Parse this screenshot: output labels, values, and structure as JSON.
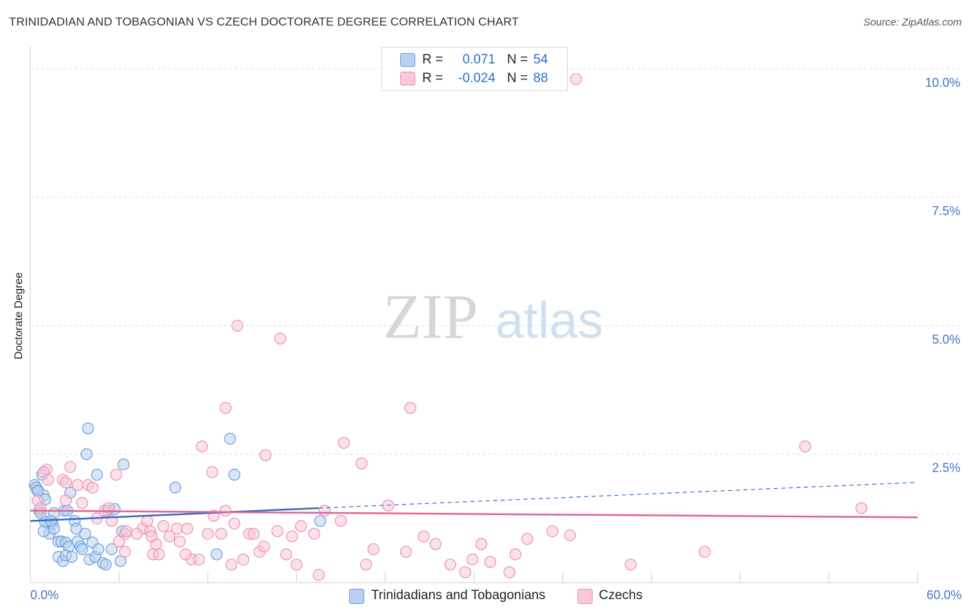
{
  "chart_data": {
    "type": "scatter",
    "title": "TRINIDADIAN AND TOBAGONIAN VS CZECH DOCTORATE DEGREE CORRELATION CHART",
    "source": "Source: ZipAtlas.com",
    "ylabel": "Doctorate Degree",
    "xlabel": "",
    "xlim": [
      0,
      60
    ],
    "ylim": [
      0,
      10.4
    ],
    "x_tick_labels": [
      "0.0%",
      "60.0%"
    ],
    "y_ticks": [
      2.5,
      5.0,
      7.5,
      10.0
    ],
    "y_tick_labels": [
      "2.5%",
      "5.0%",
      "7.5%",
      "10.0%"
    ],
    "watermark": {
      "part1": "ZIP",
      "part2": "atlas"
    },
    "legend": {
      "r_label": "R =",
      "n_label": "N =",
      "rows": [
        {
          "r": "0.071",
          "n": "54"
        },
        {
          "r": "-0.024",
          "n": "88"
        }
      ]
    },
    "series": [
      {
        "name": "Trinidadians and Tobagonians",
        "color": "#6a9fdc",
        "fill": "#b8d1f0",
        "line_color": "#2f6ec4",
        "trend_solid": [
          [
            0,
            1.2
          ],
          [
            19.5,
            1.45
          ]
        ],
        "trend_dashed": [
          [
            19.5,
            1.45
          ],
          [
            60,
            1.95
          ]
        ],
        "points": [
          [
            0.3,
            1.9
          ],
          [
            0.5,
            1.8
          ],
          [
            0.4,
            1.85
          ],
          [
            0.9,
            1.7
          ],
          [
            1.0,
            1.62
          ],
          [
            0.8,
            2.1
          ],
          [
            0.6,
            1.4
          ],
          [
            0.7,
            1.35
          ],
          [
            1.2,
            1.15
          ],
          [
            1.5,
            1.15
          ],
          [
            1.3,
            0.95
          ],
          [
            1.6,
            1.05
          ],
          [
            1.6,
            1.35
          ],
          [
            1.9,
            0.8
          ],
          [
            2.1,
            0.8
          ],
          [
            2.4,
            0.78
          ],
          [
            2.6,
            0.7
          ],
          [
            2.3,
            1.4
          ],
          [
            2.5,
            1.4
          ],
          [
            2.7,
            1.75
          ],
          [
            3.0,
            1.2
          ],
          [
            3.2,
            0.8
          ],
          [
            3.4,
            0.7
          ],
          [
            3.5,
            0.65
          ],
          [
            3.7,
            0.95
          ],
          [
            3.8,
            2.5
          ],
          [
            3.9,
            3.0
          ],
          [
            4.0,
            0.45
          ],
          [
            4.2,
            0.78
          ],
          [
            4.4,
            0.5
          ],
          [
            4.5,
            2.1
          ],
          [
            4.6,
            0.65
          ],
          [
            4.9,
            0.38
          ],
          [
            5.1,
            0.35
          ],
          [
            5.2,
            1.4
          ],
          [
            5.5,
            0.65
          ],
          [
            5.7,
            1.43
          ],
          [
            6.1,
            0.42
          ],
          [
            6.2,
            1.0
          ],
          [
            6.3,
            2.3
          ],
          [
            9.8,
            1.85
          ],
          [
            12.6,
            0.55
          ],
          [
            13.5,
            2.8
          ],
          [
            13.8,
            2.1
          ],
          [
            19.6,
            1.2
          ],
          [
            1.9,
            0.5
          ],
          [
            2.2,
            0.42
          ],
          [
            2.4,
            0.53
          ],
          [
            0.5,
            1.78
          ],
          [
            1.0,
            1.18
          ],
          [
            1.4,
            1.2
          ],
          [
            3.1,
            1.05
          ],
          [
            0.9,
            1.0
          ],
          [
            2.8,
            0.5
          ]
        ]
      },
      {
        "name": "Czechs",
        "color": "#ec8faf",
        "fill": "#f8c8d8",
        "line_color": "#e0648e",
        "trend_solid": [
          [
            0,
            1.4
          ],
          [
            60,
            1.27
          ]
        ],
        "points": [
          [
            36.9,
            9.8
          ],
          [
            14.0,
            5.0
          ],
          [
            16.9,
            4.75
          ],
          [
            13.2,
            3.4
          ],
          [
            25.7,
            3.4
          ],
          [
            11.6,
            2.65
          ],
          [
            21.2,
            2.72
          ],
          [
            15.9,
            2.48
          ],
          [
            22.4,
            2.32
          ],
          [
            12.3,
            2.15
          ],
          [
            1.1,
            2.2
          ],
          [
            0.9,
            2.15
          ],
          [
            1.2,
            2.0
          ],
          [
            2.2,
            2.0
          ],
          [
            2.4,
            1.95
          ],
          [
            2.7,
            2.25
          ],
          [
            3.2,
            1.9
          ],
          [
            3.9,
            1.9
          ],
          [
            4.2,
            1.85
          ],
          [
            5.8,
            2.1
          ],
          [
            0.5,
            1.6
          ],
          [
            0.7,
            1.45
          ],
          [
            2.4,
            1.6
          ],
          [
            3.5,
            1.55
          ],
          [
            4.5,
            1.25
          ],
          [
            5.0,
            1.4
          ],
          [
            5.3,
            1.45
          ],
          [
            6.4,
            0.95
          ],
          [
            6.5,
            1.0
          ],
          [
            7.6,
            1.05
          ],
          [
            7.9,
            1.2
          ],
          [
            8.1,
            1.0
          ],
          [
            8.5,
            0.75
          ],
          [
            9.0,
            1.1
          ],
          [
            9.4,
            0.9
          ],
          [
            9.9,
            1.05
          ],
          [
            10.1,
            0.8
          ],
          [
            10.6,
            1.05
          ],
          [
            12.4,
            1.3
          ],
          [
            12.9,
            0.95
          ],
          [
            13.2,
            1.4
          ],
          [
            13.8,
            1.15
          ],
          [
            14.4,
            0.45
          ],
          [
            14.8,
            0.95
          ],
          [
            15.1,
            0.95
          ],
          [
            15.5,
            0.6
          ],
          [
            15.8,
            0.7
          ],
          [
            16.7,
            1.0
          ],
          [
            17.3,
            0.55
          ],
          [
            17.7,
            0.9
          ],
          [
            18.0,
            0.35
          ],
          [
            18.3,
            1.1
          ],
          [
            19.2,
            0.95
          ],
          [
            19.5,
            0.15
          ],
          [
            19.9,
            1.4
          ],
          [
            21.0,
            1.2
          ],
          [
            22.7,
            0.35
          ],
          [
            23.2,
            0.65
          ],
          [
            24.2,
            1.5
          ],
          [
            25.4,
            0.6
          ],
          [
            26.6,
            0.9
          ],
          [
            27.4,
            0.75
          ],
          [
            28.4,
            0.35
          ],
          [
            29.4,
            0.2
          ],
          [
            29.9,
            0.45
          ],
          [
            30.5,
            0.75
          ],
          [
            31.1,
            0.4
          ],
          [
            32.4,
            0.2
          ],
          [
            32.8,
            0.55
          ],
          [
            33.6,
            0.85
          ],
          [
            35.3,
            1.0
          ],
          [
            36.5,
            0.92
          ],
          [
            40.6,
            0.35
          ],
          [
            45.6,
            0.6
          ],
          [
            52.4,
            2.65
          ],
          [
            56.2,
            1.45
          ],
          [
            8.3,
            0.55
          ],
          [
            10.9,
            0.45
          ],
          [
            12.0,
            0.95
          ],
          [
            13.6,
            0.35
          ],
          [
            6.4,
            0.6
          ],
          [
            8.7,
            0.55
          ],
          [
            10.5,
            0.55
          ],
          [
            7.2,
            0.95
          ],
          [
            5.5,
            1.2
          ],
          [
            6.0,
            0.8
          ],
          [
            8.2,
            0.9
          ],
          [
            11.4,
            0.45
          ]
        ]
      }
    ]
  }
}
